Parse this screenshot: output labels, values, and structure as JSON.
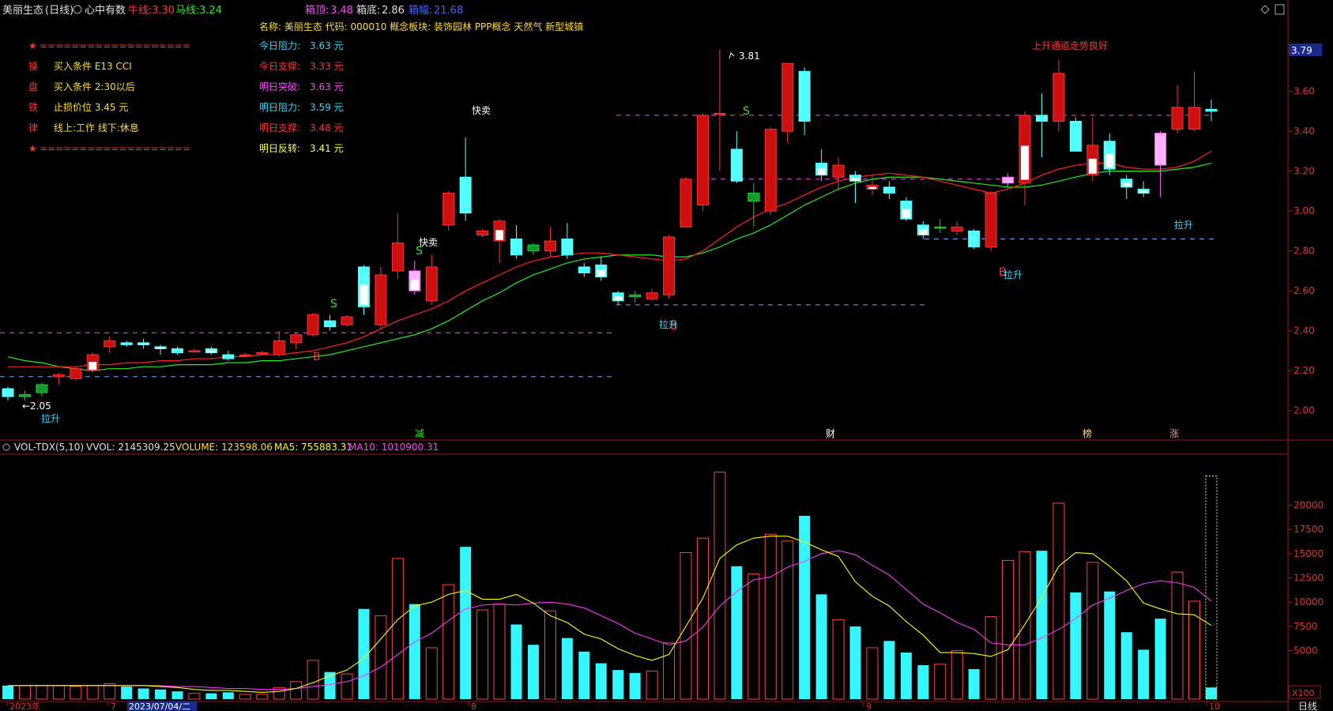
{
  "header": {
    "stock": "美丽生态",
    "period": "(日线)",
    "indicator": "心中有数",
    "cow_label": "牛线:",
    "cow_val": "3.30",
    "horse_label": "马线:",
    "horse_val": "3.24",
    "box_top_label": "箱顶:",
    "box_top_val": "3.48",
    "box_bot_label": "箱底:",
    "box_bot_val": "2.86",
    "box_amp_label": "箱幅:",
    "box_amp_val": "21.68"
  },
  "info": {
    "name_line": "名称: 美丽生态 代码: 000010 概念板块: 装饰园林 PPP概念 天然气 新型城镇"
  },
  "rules": [
    {
      "head": "★",
      "text": "===================",
      "sep": true
    },
    {
      "head": "操",
      "text": "买入条件 E13 CCI"
    },
    {
      "head": "盘",
      "text": "买入条件 2:30以后"
    },
    {
      "head": "铁",
      "text": "止损价位 3.45 元"
    },
    {
      "head": "律",
      "text": "线上:工作 线下:休息"
    },
    {
      "head": "★",
      "text": "===================",
      "sep": true
    }
  ],
  "levels": [
    {
      "label": "今日阻力:",
      "value": "3.63 元",
      "color": "#31d7ff"
    },
    {
      "label": "今日支撑:",
      "value": "3.33 元",
      "color": "#ff3333"
    },
    {
      "label": "明日突破:",
      "value": "3.63 元",
      "color": "#ff44ff"
    },
    {
      "label": "明日阻力:",
      "value": "3.59 元",
      "color": "#31d7ff"
    },
    {
      "label": "明日支撑:",
      "value": "3.48 元",
      "color": "#ff3333"
    },
    {
      "label": "明日反转:",
      "value": "3.41 元",
      "color": "#ffff44"
    }
  ],
  "annotations": {
    "high_mark": "3.81",
    "low_mark": "←2.05",
    "trend_text": "上升通道走势良好",
    "kuaimai_1": "快卖",
    "kuaimai_2": "快卖",
    "lasheng": "拉升",
    "S": "S",
    "B": "B",
    "ev_1": "减",
    "ev_2": "财",
    "ev_3": "榜",
    "ev_4": "涨"
  },
  "vol_header": {
    "name": "VOL-TDX(5,10)",
    "vvol": "VVOL: 2145309.25",
    "volume": "VOLUME: 123598.06",
    "ma5": "MA5: 755883.31",
    "ma10": "MA10: 1010900.31"
  },
  "right_axis_price": [
    "3.60",
    "3.40",
    "3.20",
    "3.00",
    "2.80",
    "2.60",
    "2.40",
    "2.20",
    "2.00"
  ],
  "current_price_tag": "3.79",
  "right_axis_vol": [
    "20000",
    "17500",
    "15000",
    "12500",
    "10000",
    "7500",
    "5000"
  ],
  "vol_unit": "X100",
  "period_button": "日线",
  "date_axis": [
    "2023年",
    "7",
    "2023/07/04/二",
    "8",
    "9",
    "10"
  ],
  "colors": {
    "up": "#ff3232",
    "down": "#54ffff",
    "bg": "#000000",
    "ma5": "#ffff00",
    "ma10": "#ff33ff",
    "red_ma": "#ff2020",
    "green_ma": "#22ee22"
  },
  "chart_data": {
    "type": "candlestick",
    "price_range": [
      1.9,
      3.84
    ],
    "vol_range": [
      0,
      25000
    ],
    "candles": [
      {
        "o": 2.11,
        "c": 2.07,
        "h": 2.12,
        "l": 2.05,
        "v": 1400
      },
      {
        "o": 2.07,
        "c": 2.08,
        "h": 2.1,
        "l": 2.05,
        "v": 1400
      },
      {
        "o": 2.09,
        "c": 2.13,
        "h": 2.14,
        "l": 2.07,
        "v": 1400
      },
      {
        "o": 2.17,
        "c": 2.18,
        "h": 2.19,
        "l": 2.13,
        "v": 1400
      },
      {
        "o": 2.16,
        "c": 2.21,
        "h": 2.22,
        "l": 2.15,
        "v": 1300
      },
      {
        "o": 2.2,
        "c": 2.28,
        "h": 2.29,
        "l": 2.19,
        "v": 1400
      },
      {
        "o": 2.32,
        "c": 2.35,
        "h": 2.37,
        "l": 2.29,
        "v": 1600
      },
      {
        "o": 2.34,
        "c": 2.33,
        "h": 2.35,
        "l": 2.32,
        "v": 1300
      },
      {
        "o": 2.34,
        "c": 2.33,
        "h": 2.36,
        "l": 2.31,
        "v": 1100
      },
      {
        "o": 2.32,
        "c": 2.31,
        "h": 2.33,
        "l": 2.28,
        "v": 1000
      },
      {
        "o": 2.31,
        "c": 2.29,
        "h": 2.32,
        "l": 2.28,
        "v": 800
      },
      {
        "o": 2.3,
        "c": 2.3,
        "h": 2.31,
        "l": 2.29,
        "v": 600
      },
      {
        "o": 2.31,
        "c": 2.29,
        "h": 2.32,
        "l": 2.28,
        "v": 600
      },
      {
        "o": 2.28,
        "c": 2.26,
        "h": 2.3,
        "l": 2.25,
        "v": 700
      },
      {
        "o": 2.28,
        "c": 2.28,
        "h": 2.29,
        "l": 2.27,
        "v": 500
      },
      {
        "o": 2.29,
        "c": 2.29,
        "h": 2.3,
        "l": 2.28,
        "v": 500
      },
      {
        "o": 2.28,
        "c": 2.35,
        "h": 2.4,
        "l": 2.27,
        "v": 1200
      },
      {
        "o": 2.34,
        "c": 2.38,
        "h": 2.39,
        "l": 2.31,
        "v": 1800
      },
      {
        "o": 2.38,
        "c": 2.48,
        "h": 2.49,
        "l": 2.37,
        "v": 4000
      },
      {
        "o": 2.45,
        "c": 2.42,
        "h": 2.48,
        "l": 2.4,
        "v": 2800
      },
      {
        "o": 2.43,
        "c": 2.47,
        "h": 2.48,
        "l": 2.42,
        "v": 2600
      },
      {
        "o": 2.72,
        "c": 2.52,
        "h": 2.73,
        "l": 2.48,
        "v": 9300
      },
      {
        "o": 2.43,
        "c": 2.68,
        "h": 2.72,
        "l": 2.41,
        "v": 8600
      },
      {
        "o": 2.7,
        "c": 2.84,
        "h": 2.99,
        "l": 2.66,
        "v": 14500
      },
      {
        "o": 2.7,
        "c": 2.6,
        "h": 2.75,
        "l": 2.58,
        "v": 9800
      },
      {
        "o": 2.55,
        "c": 2.72,
        "h": 2.78,
        "l": 2.53,
        "v": 5300
      },
      {
        "o": 2.93,
        "c": 3.09,
        "h": 3.1,
        "l": 2.9,
        "v": 11800
      },
      {
        "o": 3.17,
        "c": 2.99,
        "h": 3.37,
        "l": 2.95,
        "v": 15700
      },
      {
        "o": 2.88,
        "c": 2.9,
        "h": 2.91,
        "l": 2.87,
        "v": 9200
      },
      {
        "o": 2.85,
        "c": 2.95,
        "h": 2.96,
        "l": 2.74,
        "v": 9800
      },
      {
        "o": 2.86,
        "c": 2.78,
        "h": 2.93,
        "l": 2.76,
        "v": 7700
      },
      {
        "o": 2.83,
        "c": 2.8,
        "h": 2.84,
        "l": 2.78,
        "v": 5600
      },
      {
        "o": 2.8,
        "c": 2.85,
        "h": 2.92,
        "l": 2.77,
        "v": 9100
      },
      {
        "o": 2.86,
        "c": 2.78,
        "h": 2.94,
        "l": 2.76,
        "v": 6300
      },
      {
        "o": 2.72,
        "c": 2.69,
        "h": 2.74,
        "l": 2.67,
        "v": 4900
      },
      {
        "o": 2.73,
        "c": 2.67,
        "h": 2.77,
        "l": 2.65,
        "v": 3700
      },
      {
        "o": 2.59,
        "c": 2.55,
        "h": 2.6,
        "l": 2.53,
        "v": 3000
      },
      {
        "o": 2.58,
        "c": 2.57,
        "h": 2.6,
        "l": 2.54,
        "v": 2700
      },
      {
        "o": 2.56,
        "c": 2.59,
        "h": 2.61,
        "l": 2.55,
        "v": 2900
      },
      {
        "o": 2.58,
        "c": 2.87,
        "h": 2.88,
        "l": 2.56,
        "v": 5800
      },
      {
        "o": 2.92,
        "c": 3.16,
        "h": 3.17,
        "l": 2.92,
        "v": 15100
      },
      {
        "o": 3.03,
        "c": 3.48,
        "h": 3.49,
        "l": 3.0,
        "v": 16600
      },
      {
        "o": 3.49,
        "c": 3.49,
        "h": 3.81,
        "l": 3.2,
        "v": 23400
      },
      {
        "o": 3.31,
        "c": 3.15,
        "h": 3.4,
        "l": 3.14,
        "v": 13700
      },
      {
        "o": 3.05,
        "c": 3.09,
        "h": 3.14,
        "l": 2.92,
        "v": 12900
      },
      {
        "o": 3.0,
        "c": 3.41,
        "h": 3.42,
        "l": 2.98,
        "v": 17000
      },
      {
        "o": 3.4,
        "c": 3.74,
        "h": 3.74,
        "l": 3.34,
        "v": 16300
      },
      {
        "o": 3.7,
        "c": 3.45,
        "h": 3.72,
        "l": 3.38,
        "v": 18900
      },
      {
        "o": 3.24,
        "c": 3.18,
        "h": 3.31,
        "l": 3.15,
        "v": 10800
      },
      {
        "o": 3.17,
        "c": 3.23,
        "h": 3.27,
        "l": 3.1,
        "v": 8200
      },
      {
        "o": 3.18,
        "c": 3.15,
        "h": 3.2,
        "l": 3.04,
        "v": 7500
      },
      {
        "o": 3.11,
        "c": 3.13,
        "h": 3.18,
        "l": 3.08,
        "v": 5300
      },
      {
        "o": 3.12,
        "c": 3.09,
        "h": 3.15,
        "l": 3.06,
        "v": 6000
      },
      {
        "o": 3.05,
        "c": 2.96,
        "h": 3.07,
        "l": 2.95,
        "v": 4800
      },
      {
        "o": 2.93,
        "c": 2.88,
        "h": 2.95,
        "l": 2.86,
        "v": 3500
      },
      {
        "o": 2.92,
        "c": 2.92,
        "h": 2.96,
        "l": 2.89,
        "v": 3600
      },
      {
        "o": 2.9,
        "c": 2.92,
        "h": 2.95,
        "l": 2.88,
        "v": 5000
      },
      {
        "o": 2.9,
        "c": 2.82,
        "h": 2.91,
        "l": 2.81,
        "v": 3100
      },
      {
        "o": 2.82,
        "c": 3.09,
        "h": 3.1,
        "l": 2.8,
        "v": 8500
      },
      {
        "o": 3.14,
        "c": 3.17,
        "h": 3.19,
        "l": 3.12,
        "v": 14300
      },
      {
        "o": 3.14,
        "c": 3.48,
        "h": 3.5,
        "l": 3.03,
        "v": 15200
      },
      {
        "o": 3.48,
        "c": 3.45,
        "h": 3.59,
        "l": 3.27,
        "v": 15300
      },
      {
        "o": 3.45,
        "c": 3.69,
        "h": 3.76,
        "l": 3.4,
        "v": 20200
      },
      {
        "o": 3.45,
        "c": 3.3,
        "h": 3.47,
        "l": 3.3,
        "v": 11000
      },
      {
        "o": 3.18,
        "c": 3.33,
        "h": 3.47,
        "l": 3.15,
        "v": 14100
      },
      {
        "o": 3.35,
        "c": 3.21,
        "h": 3.39,
        "l": 3.18,
        "v": 11100
      },
      {
        "o": 3.16,
        "c": 3.12,
        "h": 3.18,
        "l": 3.06,
        "v": 6900
      },
      {
        "o": 3.11,
        "c": 3.09,
        "h": 3.15,
        "l": 3.07,
        "v": 5100
      },
      {
        "o": 3.39,
        "c": 3.23,
        "h": 3.4,
        "l": 3.07,
        "v": 8300
      },
      {
        "o": 3.41,
        "c": 3.52,
        "h": 3.63,
        "l": 3.39,
        "v": 13100
      },
      {
        "o": 3.41,
        "c": 3.52,
        "h": 3.7,
        "l": 3.4,
        "v": 10100
      },
      {
        "o": 3.51,
        "c": 3.5,
        "h": 3.56,
        "l": 3.45,
        "v": 1200
      }
    ],
    "hollow_up_note": "up candles drawn hollow red, down filled cyan",
    "pink_candles": [
      24,
      59,
      68
    ],
    "white_candles": [
      5,
      8,
      9,
      12,
      21,
      24,
      29,
      35,
      36,
      48,
      50,
      51,
      53,
      54,
      60,
      64,
      65,
      66,
      67
    ],
    "green_candles": [
      1,
      2,
      31,
      37,
      44,
      55,
      68
    ],
    "red_ma": [
      2.22,
      2.22,
      2.22,
      2.22,
      2.22,
      2.23,
      2.23,
      2.24,
      2.24,
      2.25,
      2.25,
      2.26,
      2.26,
      2.27,
      2.27,
      2.28,
      2.28,
      2.29,
      2.3,
      2.32,
      2.34,
      2.37,
      2.41,
      2.45,
      2.48,
      2.51,
      2.55,
      2.6,
      2.64,
      2.68,
      2.72,
      2.75,
      2.77,
      2.78,
      2.79,
      2.79,
      2.78,
      2.77,
      2.76,
      2.75,
      2.76,
      2.8,
      2.86,
      2.92,
      2.97,
      3.01,
      3.04,
      3.08,
      3.12,
      3.15,
      3.17,
      3.18,
      3.19,
      3.18,
      3.17,
      3.15,
      3.13,
      3.11,
      3.09,
      3.11,
      3.14,
      3.18,
      3.21,
      3.23,
      3.24,
      3.24,
      3.22,
      3.21,
      3.21,
      3.22,
      3.25,
      3.3
    ],
    "green_ma": [
      2.27,
      2.25,
      2.24,
      2.22,
      2.21,
      2.2,
      2.21,
      2.21,
      2.22,
      2.22,
      2.23,
      2.23,
      2.23,
      2.24,
      2.24,
      2.25,
      2.25,
      2.26,
      2.27,
      2.28,
      2.3,
      2.32,
      2.34,
      2.36,
      2.38,
      2.41,
      2.45,
      2.5,
      2.55,
      2.59,
      2.64,
      2.68,
      2.71,
      2.74,
      2.76,
      2.77,
      2.78,
      2.78,
      2.78,
      2.77,
      2.77,
      2.79,
      2.82,
      2.86,
      2.89,
      2.93,
      2.98,
      3.03,
      3.07,
      3.11,
      3.14,
      3.16,
      3.17,
      3.17,
      3.17,
      3.16,
      3.15,
      3.14,
      3.13,
      3.12,
      3.12,
      3.13,
      3.15,
      3.17,
      3.19,
      3.2,
      3.2,
      3.2,
      3.2,
      3.21,
      3.22,
      3.24
    ],
    "vol_ma5": [
      1400,
      1400,
      1400,
      1400,
      1400,
      1400,
      1400,
      1400,
      1400,
      1300,
      1200,
      1000,
      900,
      900,
      800,
      700,
      800,
      1100,
      1700,
      2400,
      3000,
      4200,
      6200,
      8200,
      9600,
      10000,
      10800,
      11200,
      10300,
      10300,
      10800,
      9900,
      8600,
      7900,
      6700,
      6200,
      5200,
      4500,
      4000,
      4600,
      7500,
      10400,
      14500,
      15900,
      16600,
      16800,
      16800,
      16200,
      15400,
      14700,
      12100,
      10600,
      9600,
      8000,
      6600,
      4800,
      4800,
      4700,
      4400,
      5100,
      7700,
      10500,
      13700,
      15100,
      15000,
      13700,
      12200,
      9900,
      9300,
      8800,
      8700,
      7600
    ],
    "vol_ma10": [
      1400,
      1400,
      1400,
      1400,
      1400,
      1400,
      1400,
      1400,
      1400,
      1400,
      1300,
      1300,
      1200,
      1100,
      1100,
      1000,
      1000,
      1100,
      1300,
      1500,
      1800,
      2400,
      3300,
      4600,
      5900,
      6800,
      8100,
      9300,
      9700,
      9800,
      9700,
      9900,
      10000,
      9800,
      9400,
      8600,
      7800,
      6800,
      6200,
      5600,
      6000,
      7400,
      9600,
      11100,
      12300,
      12600,
      13600,
      14200,
      15000,
      15300,
      14900,
      13800,
      12800,
      11300,
      9800,
      8900,
      7900,
      7200,
      5800,
      5600,
      5600,
      6300,
      7200,
      8300,
      9700,
      10400,
      11200,
      11900,
      12200,
      12000,
      11500,
      10100
    ]
  }
}
